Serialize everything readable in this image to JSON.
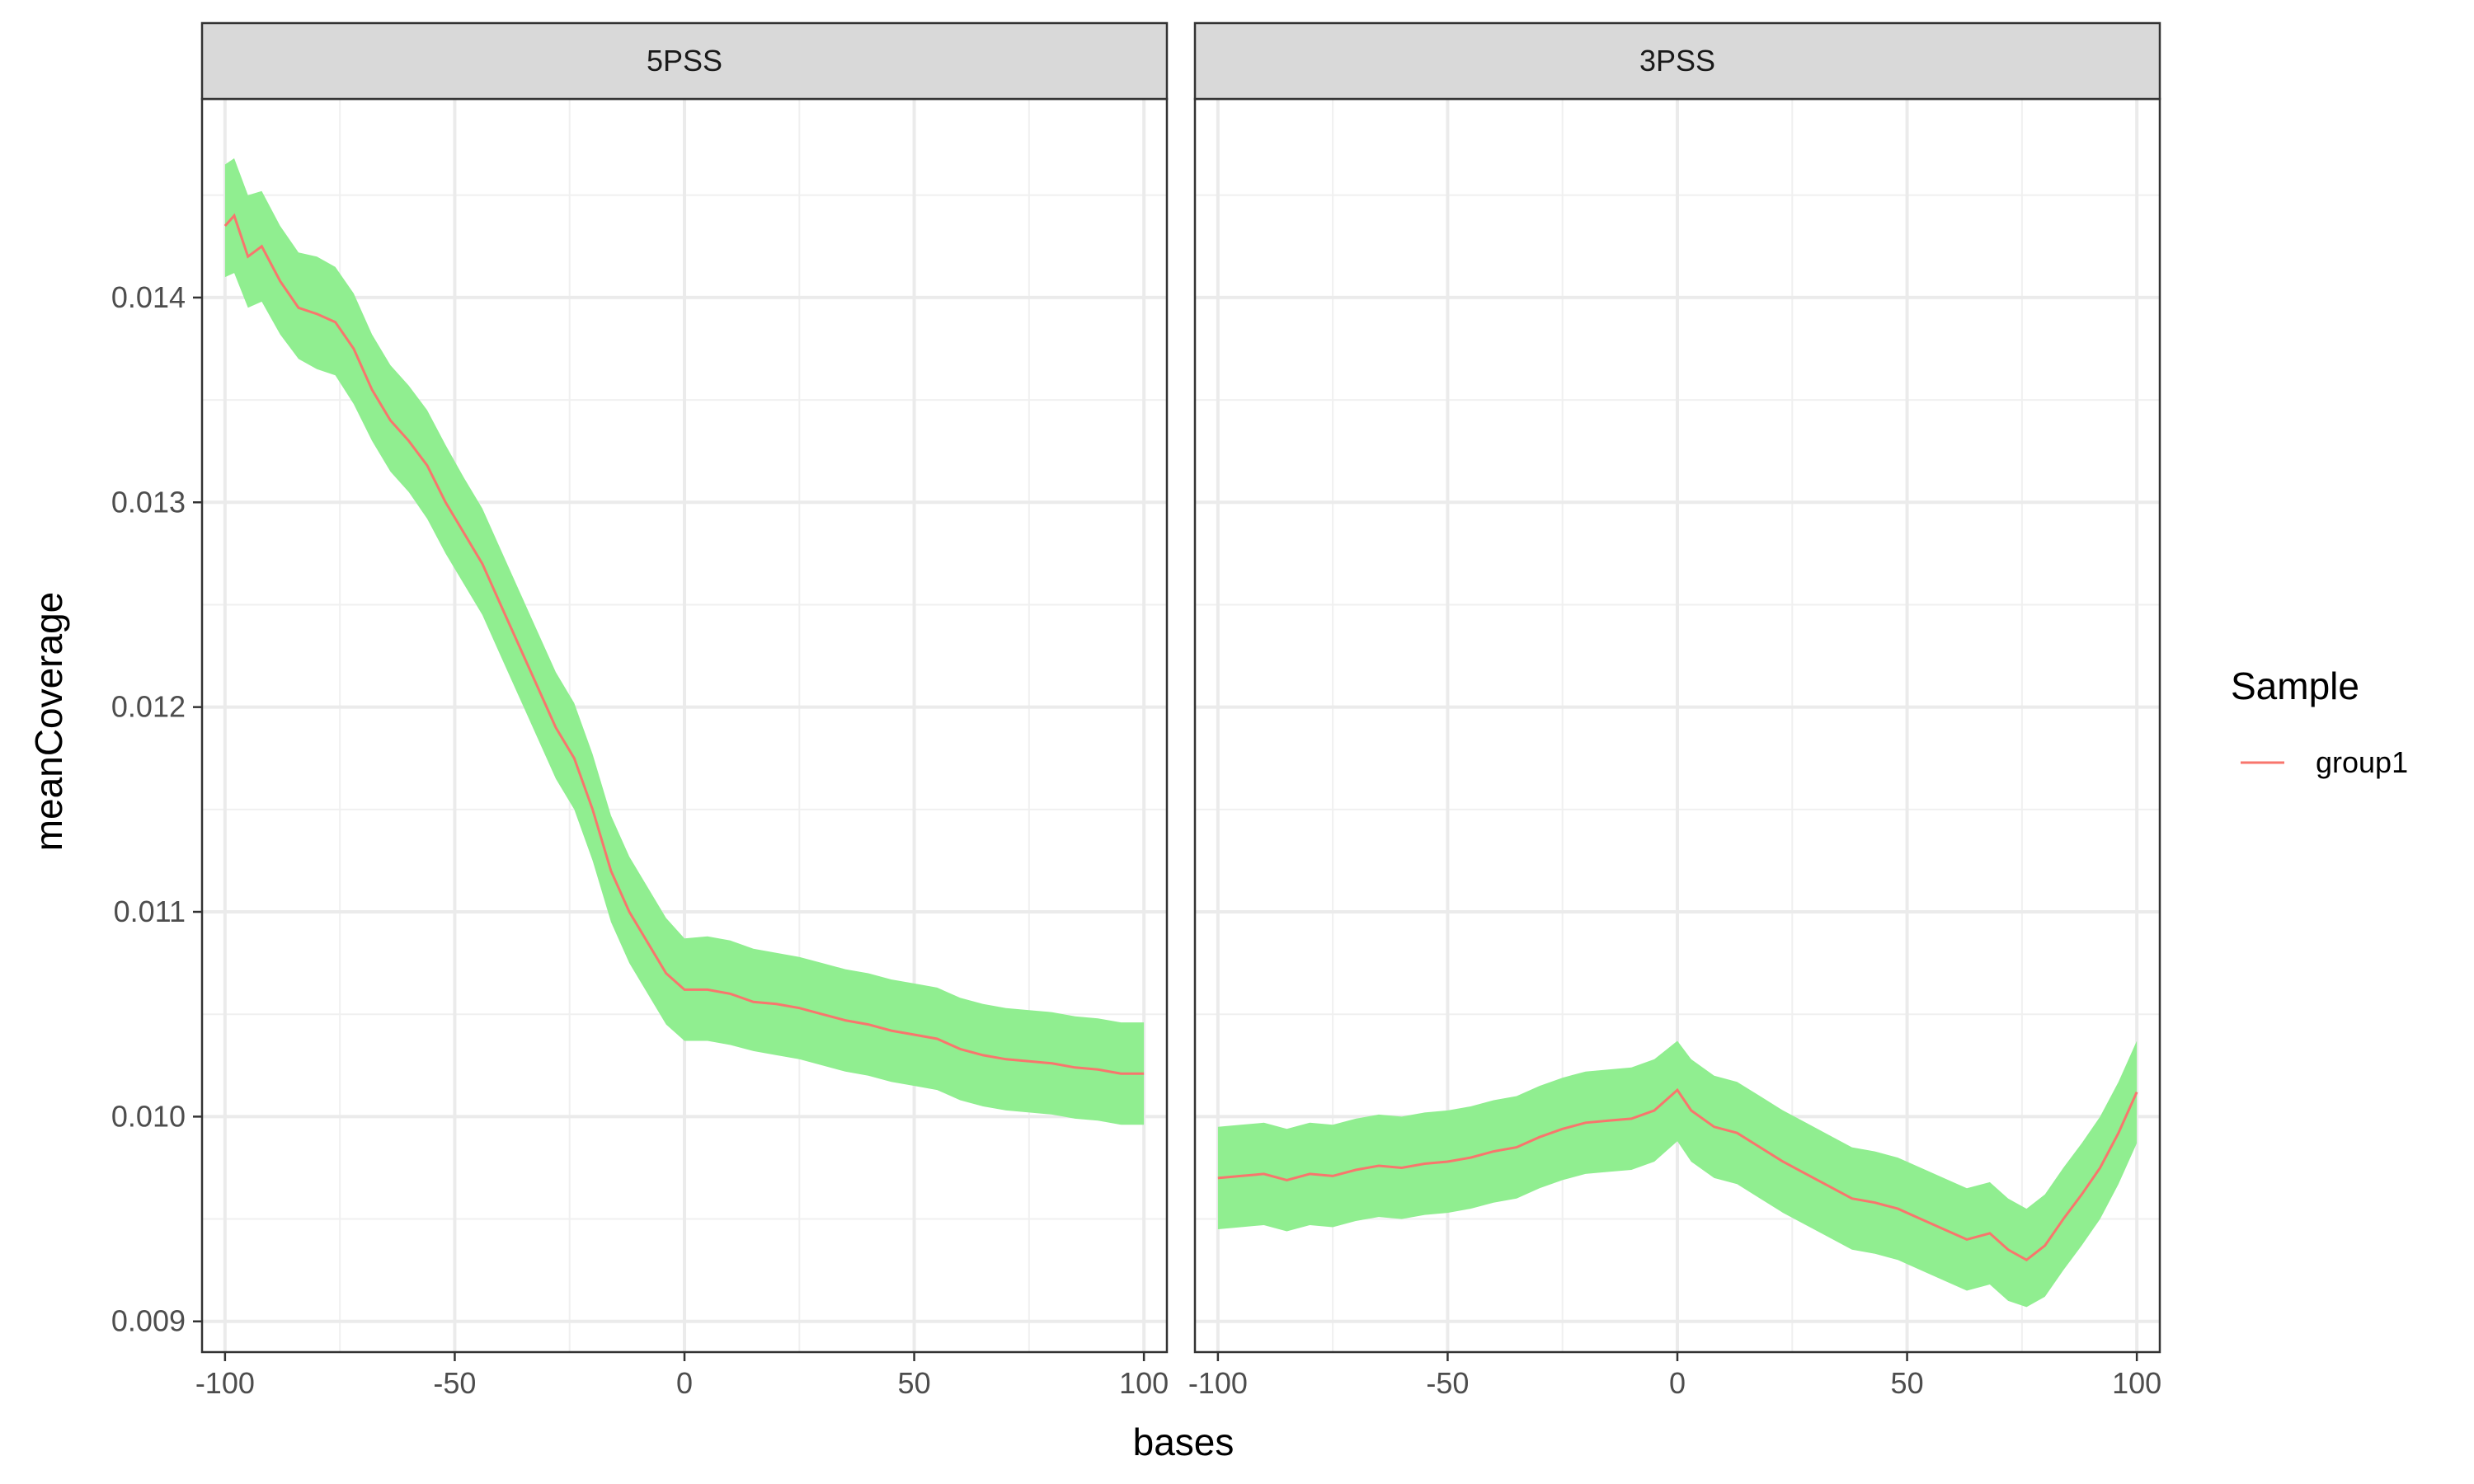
{
  "chart_data": {
    "type": "line",
    "xlabel": "bases",
    "ylabel": "meanCoverage",
    "xlim": [
      -105,
      105
    ],
    "ylim": [
      0.00885,
      0.01497
    ],
    "x_ticks": [
      -100,
      -50,
      0,
      50,
      100
    ],
    "x_tick_labels": [
      "-100",
      "-50",
      "0",
      "50",
      "100"
    ],
    "y_ticks": [
      0.009,
      0.01,
      0.011,
      0.012,
      0.013,
      0.014
    ],
    "y_tick_labels": [
      "0.009",
      "0.010",
      "0.011",
      "0.012",
      "0.013",
      "0.014"
    ],
    "grid": true,
    "legend": {
      "title": "Sample",
      "position": "right",
      "entries": [
        {
          "label": "group1",
          "color": "#F8766D"
        }
      ]
    },
    "ribbon_color": "#90EE90",
    "panels": [
      {
        "strip": "5PSS",
        "series": [
          {
            "name": "group1",
            "color": "#F8766D",
            "points": [
              {
                "x": -100,
                "y": 0.01435,
                "lower": 0.0141,
                "upper": 0.01465
              },
              {
                "x": -98,
                "y": 0.0144,
                "lower": 0.01412,
                "upper": 0.01468
              },
              {
                "x": -95,
                "y": 0.0142,
                "lower": 0.01395,
                "upper": 0.0145
              },
              {
                "x": -92,
                "y": 0.01425,
                "lower": 0.01398,
                "upper": 0.01452
              },
              {
                "x": -88,
                "y": 0.01408,
                "lower": 0.01382,
                "upper": 0.01435
              },
              {
                "x": -84,
                "y": 0.01395,
                "lower": 0.0137,
                "upper": 0.01422
              },
              {
                "x": -80,
                "y": 0.01392,
                "lower": 0.01365,
                "upper": 0.0142
              },
              {
                "x": -76,
                "y": 0.01388,
                "lower": 0.01362,
                "upper": 0.01415
              },
              {
                "x": -72,
                "y": 0.01375,
                "lower": 0.01348,
                "upper": 0.01402
              },
              {
                "x": -68,
                "y": 0.01355,
                "lower": 0.0133,
                "upper": 0.01382
              },
              {
                "x": -64,
                "y": 0.0134,
                "lower": 0.01315,
                "upper": 0.01367
              },
              {
                "x": -60,
                "y": 0.0133,
                "lower": 0.01305,
                "upper": 0.01357
              },
              {
                "x": -56,
                "y": 0.01318,
                "lower": 0.01292,
                "upper": 0.01345
              },
              {
                "x": -52,
                "y": 0.013,
                "lower": 0.01275,
                "upper": 0.01328
              },
              {
                "x": -48,
                "y": 0.01285,
                "lower": 0.0126,
                "upper": 0.01312
              },
              {
                "x": -44,
                "y": 0.0127,
                "lower": 0.01245,
                "upper": 0.01297
              },
              {
                "x": -40,
                "y": 0.0125,
                "lower": 0.01225,
                "upper": 0.01277
              },
              {
                "x": -36,
                "y": 0.0123,
                "lower": 0.01205,
                "upper": 0.01257
              },
              {
                "x": -32,
                "y": 0.0121,
                "lower": 0.01185,
                "upper": 0.01237
              },
              {
                "x": -28,
                "y": 0.0119,
                "lower": 0.01165,
                "upper": 0.01217
              },
              {
                "x": -24,
                "y": 0.01175,
                "lower": 0.0115,
                "upper": 0.01202
              },
              {
                "x": -20,
                "y": 0.0115,
                "lower": 0.01125,
                "upper": 0.01177
              },
              {
                "x": -16,
                "y": 0.0112,
                "lower": 0.01095,
                "upper": 0.01147
              },
              {
                "x": -12,
                "y": 0.011,
                "lower": 0.01075,
                "upper": 0.01127
              },
              {
                "x": -8,
                "y": 0.01085,
                "lower": 0.0106,
                "upper": 0.01112
              },
              {
                "x": -4,
                "y": 0.0107,
                "lower": 0.01045,
                "upper": 0.01097
              },
              {
                "x": 0,
                "y": 0.01062,
                "lower": 0.01037,
                "upper": 0.01087
              },
              {
                "x": 5,
                "y": 0.01062,
                "lower": 0.01037,
                "upper": 0.01088
              },
              {
                "x": 10,
                "y": 0.0106,
                "lower": 0.01035,
                "upper": 0.01086
              },
              {
                "x": 15,
                "y": 0.01056,
                "lower": 0.01032,
                "upper": 0.01082
              },
              {
                "x": 20,
                "y": 0.01055,
                "lower": 0.0103,
                "upper": 0.0108
              },
              {
                "x": 25,
                "y": 0.01053,
                "lower": 0.01028,
                "upper": 0.01078
              },
              {
                "x": 30,
                "y": 0.0105,
                "lower": 0.01025,
                "upper": 0.01075
              },
              {
                "x": 35,
                "y": 0.01047,
                "lower": 0.01022,
                "upper": 0.01072
              },
              {
                "x": 40,
                "y": 0.01045,
                "lower": 0.0102,
                "upper": 0.0107
              },
              {
                "x": 45,
                "y": 0.01042,
                "lower": 0.01017,
                "upper": 0.01067
              },
              {
                "x": 50,
                "y": 0.0104,
                "lower": 0.01015,
                "upper": 0.01065
              },
              {
                "x": 55,
                "y": 0.01038,
                "lower": 0.01013,
                "upper": 0.01063
              },
              {
                "x": 60,
                "y": 0.01033,
                "lower": 0.01008,
                "upper": 0.01058
              },
              {
                "x": 65,
                "y": 0.0103,
                "lower": 0.01005,
                "upper": 0.01055
              },
              {
                "x": 70,
                "y": 0.01028,
                "lower": 0.01003,
                "upper": 0.01053
              },
              {
                "x": 75,
                "y": 0.01027,
                "lower": 0.01002,
                "upper": 0.01052
              },
              {
                "x": 80,
                "y": 0.01026,
                "lower": 0.01001,
                "upper": 0.01051
              },
              {
                "x": 85,
                "y": 0.01024,
                "lower": 0.00999,
                "upper": 0.01049
              },
              {
                "x": 90,
                "y": 0.01023,
                "lower": 0.00998,
                "upper": 0.01048
              },
              {
                "x": 95,
                "y": 0.01021,
                "lower": 0.00996,
                "upper": 0.01046
              },
              {
                "x": 100,
                "y": 0.01021,
                "lower": 0.00996,
                "upper": 0.01046
              }
            ]
          }
        ]
      },
      {
        "strip": "3PSS",
        "series": [
          {
            "name": "group1",
            "color": "#F8766D",
            "points": [
              {
                "x": -100,
                "y": 0.0097,
                "lower": 0.00945,
                "upper": 0.00995
              },
              {
                "x": -95,
                "y": 0.00971,
                "lower": 0.00946,
                "upper": 0.00996
              },
              {
                "x": -90,
                "y": 0.00972,
                "lower": 0.00947,
                "upper": 0.00997
              },
              {
                "x": -85,
                "y": 0.00969,
                "lower": 0.00944,
                "upper": 0.00994
              },
              {
                "x": -80,
                "y": 0.00972,
                "lower": 0.00947,
                "upper": 0.00997
              },
              {
                "x": -75,
                "y": 0.00971,
                "lower": 0.00946,
                "upper": 0.00996
              },
              {
                "x": -70,
                "y": 0.00974,
                "lower": 0.00949,
                "upper": 0.00999
              },
              {
                "x": -65,
                "y": 0.00976,
                "lower": 0.00951,
                "upper": 0.01001
              },
              {
                "x": -60,
                "y": 0.00975,
                "lower": 0.0095,
                "upper": 0.01
              },
              {
                "x": -55,
                "y": 0.00977,
                "lower": 0.00952,
                "upper": 0.01002
              },
              {
                "x": -50,
                "y": 0.00978,
                "lower": 0.00953,
                "upper": 0.01003
              },
              {
                "x": -45,
                "y": 0.0098,
                "lower": 0.00955,
                "upper": 0.01005
              },
              {
                "x": -40,
                "y": 0.00983,
                "lower": 0.00958,
                "upper": 0.01008
              },
              {
                "x": -35,
                "y": 0.00985,
                "lower": 0.0096,
                "upper": 0.0101
              },
              {
                "x": -30,
                "y": 0.0099,
                "lower": 0.00965,
                "upper": 0.01015
              },
              {
                "x": -25,
                "y": 0.00994,
                "lower": 0.00969,
                "upper": 0.01019
              },
              {
                "x": -20,
                "y": 0.00997,
                "lower": 0.00972,
                "upper": 0.01022
              },
              {
                "x": -15,
                "y": 0.00998,
                "lower": 0.00973,
                "upper": 0.01023
              },
              {
                "x": -10,
                "y": 0.00999,
                "lower": 0.00974,
                "upper": 0.01024
              },
              {
                "x": -5,
                "y": 0.01003,
                "lower": 0.00978,
                "upper": 0.01028
              },
              {
                "x": 0,
                "y": 0.01013,
                "lower": 0.00988,
                "upper": 0.01037
              },
              {
                "x": 3,
                "y": 0.01003,
                "lower": 0.00978,
                "upper": 0.01028
              },
              {
                "x": 8,
                "y": 0.00995,
                "lower": 0.0097,
                "upper": 0.0102
              },
              {
                "x": 13,
                "y": 0.00992,
                "lower": 0.00967,
                "upper": 0.01017
              },
              {
                "x": 18,
                "y": 0.00985,
                "lower": 0.0096,
                "upper": 0.0101
              },
              {
                "x": 23,
                "y": 0.00978,
                "lower": 0.00953,
                "upper": 0.01003
              },
              {
                "x": 28,
                "y": 0.00972,
                "lower": 0.00947,
                "upper": 0.00997
              },
              {
                "x": 33,
                "y": 0.00966,
                "lower": 0.00941,
                "upper": 0.00991
              },
              {
                "x": 38,
                "y": 0.0096,
                "lower": 0.00935,
                "upper": 0.00985
              },
              {
                "x": 43,
                "y": 0.00958,
                "lower": 0.00933,
                "upper": 0.00983
              },
              {
                "x": 48,
                "y": 0.00955,
                "lower": 0.0093,
                "upper": 0.0098
              },
              {
                "x": 53,
                "y": 0.0095,
                "lower": 0.00925,
                "upper": 0.00975
              },
              {
                "x": 58,
                "y": 0.00945,
                "lower": 0.0092,
                "upper": 0.0097
              },
              {
                "x": 63,
                "y": 0.0094,
                "lower": 0.00915,
                "upper": 0.00965
              },
              {
                "x": 68,
                "y": 0.00943,
                "lower": 0.00918,
                "upper": 0.00968
              },
              {
                "x": 72,
                "y": 0.00935,
                "lower": 0.0091,
                "upper": 0.0096
              },
              {
                "x": 76,
                "y": 0.0093,
                "lower": 0.00907,
                "upper": 0.00955
              },
              {
                "x": 80,
                "y": 0.00937,
                "lower": 0.00912,
                "upper": 0.00962
              },
              {
                "x": 84,
                "y": 0.0095,
                "lower": 0.00925,
                "upper": 0.00975
              },
              {
                "x": 88,
                "y": 0.00962,
                "lower": 0.00937,
                "upper": 0.00987
              },
              {
                "x": 92,
                "y": 0.00975,
                "lower": 0.0095,
                "upper": 0.01
              },
              {
                "x": 96,
                "y": 0.00992,
                "lower": 0.00967,
                "upper": 0.01017
              },
              {
                "x": 100,
                "y": 0.01012,
                "lower": 0.00987,
                "upper": 0.01037
              }
            ]
          }
        ]
      }
    ]
  }
}
